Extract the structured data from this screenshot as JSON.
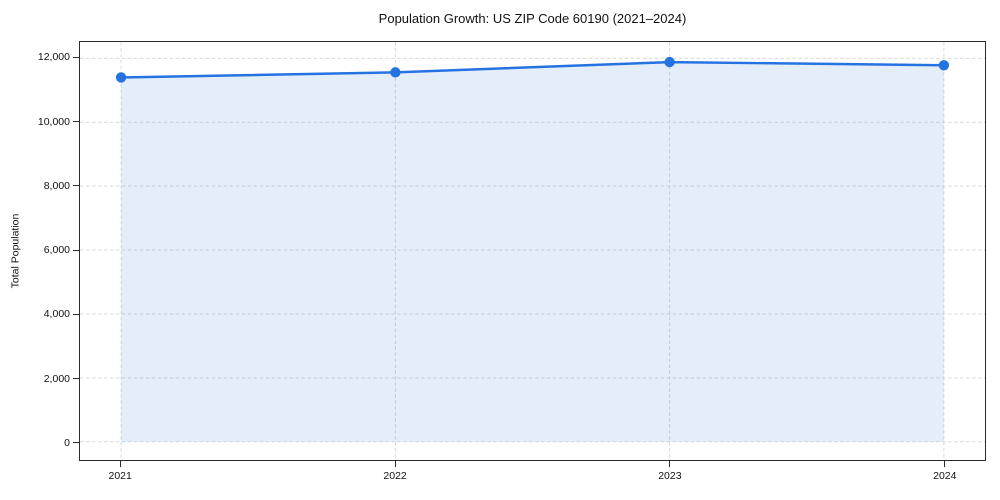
{
  "figure": {
    "title": "Population Growth: US ZIP Code 60190 (2021–2024)"
  },
  "chart_data": {
    "type": "area",
    "title": "Population Growth: US ZIP Code 60190 (2021–2024)",
    "xlabel": "",
    "ylabel": "Total Population",
    "x": [
      2021,
      2022,
      2023,
      2024
    ],
    "x_tick_labels": [
      "2021",
      "2022",
      "2023",
      "2024"
    ],
    "series": [
      {
        "name": "Total Population",
        "values": [
          11400,
          11560,
          11880,
          11780
        ]
      }
    ],
    "y_ticks": [
      0,
      2000,
      4000,
      6000,
      8000,
      10000,
      12000
    ],
    "y_tick_labels": [
      "0",
      "2,000",
      "4,000",
      "6,000",
      "8,000",
      "10,000",
      "12,000"
    ],
    "xlim": [
      2020.85,
      2024.15
    ],
    "ylim": [
      -570,
      12510
    ],
    "grid": true,
    "grid_style": "dashed",
    "legend": "none",
    "marker": "circle",
    "colors": {
      "line": "#2573e1",
      "marker": "#2573e1",
      "fill": "rgba(37,115,225,0.12)",
      "grid": "#d9d9d9",
      "spine": "#2b2b2b",
      "text": "#111111"
    }
  }
}
